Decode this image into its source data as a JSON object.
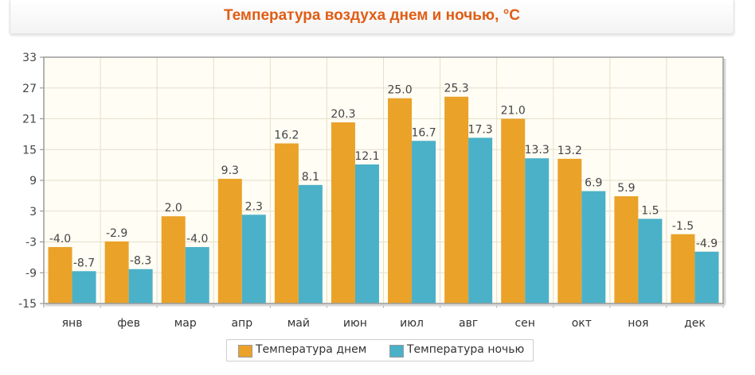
{
  "title": "Температура воздуха днем и ночью, °C",
  "legend": {
    "day_label": "Температура днем",
    "night_label": "Температура ночью"
  },
  "colors": {
    "day": "#eaa229",
    "night": "#4ab1c8",
    "title": "#e05d15",
    "grid": "#e6dfcc",
    "plot_bg": "#fffdf4"
  },
  "chart_data": {
    "type": "bar",
    "title": "Температура воздуха днем и ночью, °C",
    "xlabel": "",
    "ylabel": "",
    "ylim": [
      -15,
      33
    ],
    "yticks": [
      -15,
      -9,
      -3,
      3,
      9,
      15,
      21,
      27,
      33
    ],
    "grid": true,
    "legend_position": "bottom",
    "categories": [
      "янв",
      "фев",
      "мар",
      "апр",
      "май",
      "июн",
      "июл",
      "авг",
      "сен",
      "окт",
      "ноя",
      "дек"
    ],
    "series": [
      {
        "name": "Температура днем",
        "values": [
          -4.0,
          -2.9,
          2.0,
          9.3,
          16.2,
          20.3,
          25.0,
          25.3,
          21.0,
          13.2,
          5.9,
          -1.5
        ]
      },
      {
        "name": "Температура ночью",
        "values": [
          -8.7,
          -8.3,
          -4.0,
          2.3,
          8.1,
          12.1,
          16.7,
          17.3,
          13.3,
          6.9,
          1.5,
          -4.9
        ]
      }
    ]
  }
}
